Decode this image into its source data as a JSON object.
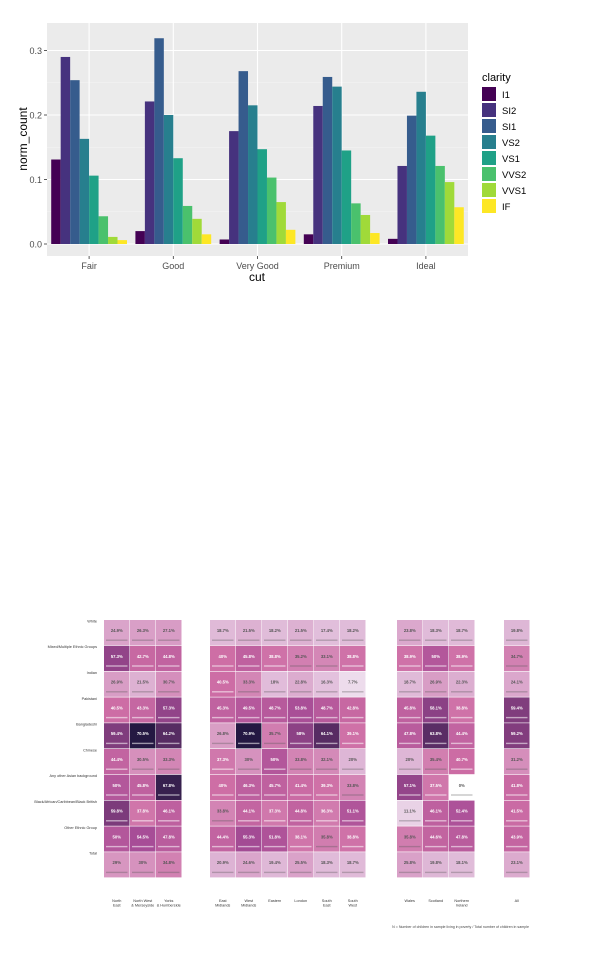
{
  "chart_data": [
    {
      "type": "bar",
      "xlabel": "cut",
      "ylabel": "norm_count",
      "categories": [
        "Fair",
        "Good",
        "Very Good",
        "Premium",
        "Ideal"
      ],
      "ylim": [
        0,
        0.33
      ],
      "yticks": [
        "0.0",
        "0.1",
        "0.2",
        "0.3"
      ],
      "ytick_values": [
        0,
        0.1,
        0.2,
        0.3
      ],
      "grid": true,
      "legend_title": "clarity",
      "legend_position": "right",
      "series": [
        {
          "name": "I1",
          "color": "#440154",
          "values": [
            0.131,
            0.02,
            0.007,
            0.015,
            0.008
          ]
        },
        {
          "name": "SI2",
          "color": "#46327e",
          "values": [
            0.29,
            0.221,
            0.175,
            0.214,
            0.121
          ]
        },
        {
          "name": "SI1",
          "color": "#365c8d",
          "values": [
            0.254,
            0.319,
            0.268,
            0.259,
            0.199
          ]
        },
        {
          "name": "VS2",
          "color": "#277f8e",
          "values": [
            0.163,
            0.2,
            0.215,
            0.244,
            0.236
          ]
        },
        {
          "name": "VS1",
          "color": "#1fa187",
          "values": [
            0.106,
            0.133,
            0.147,
            0.145,
            0.168
          ]
        },
        {
          "name": "VVS2",
          "color": "#4ac16d",
          "values": [
            0.043,
            0.059,
            0.103,
            0.063,
            0.121
          ]
        },
        {
          "name": "VVS1",
          "color": "#a0da39",
          "values": [
            0.011,
            0.039,
            0.065,
            0.045,
            0.096
          ]
        },
        {
          "name": "IF",
          "color": "#fde725",
          "values": [
            0.006,
            0.015,
            0.022,
            0.017,
            0.057
          ]
        }
      ]
    },
    {
      "type": "heatmap",
      "rows": [
        "White",
        "Mixed/Multiple Ethnic Groups",
        "Indian",
        "Pakistani",
        "Bangladeshi",
        "Chinese",
        "Any other Asian background",
        "Black/African/Caribbean/Black British",
        "Other Ethnic Group",
        "Total"
      ],
      "column_groups": [
        {
          "columns": [
            "North East",
            "North West & Merseyside",
            "Yorks & Humberside"
          ]
        },
        {
          "columns": [
            "East Midlands",
            "West Midlands",
            "Eastern",
            "London",
            "South East",
            "South West"
          ]
        },
        {
          "columns": [
            "Wales",
            "Scotland",
            "Northern Ireland"
          ]
        },
        {
          "columns": [
            "All"
          ]
        }
      ],
      "values": [
        [
          24.9,
          26.3,
          27.1,
          18.7,
          21.5,
          18.2,
          21.5,
          17.4,
          18.2,
          23.8,
          18.3,
          18.7,
          19.8
        ],
        [
          57.3,
          42.7,
          44.8,
          40,
          45.8,
          38.8,
          35.2,
          33.1,
          38.8,
          38.9,
          50,
          38.9,
          34.7
        ],
        [
          26.9,
          21.5,
          30.7,
          40.5,
          33.3,
          18,
          22.8,
          16.3,
          7.7,
          18.7,
          26.9,
          22.3,
          24.1
        ],
        [
          40.5,
          43.3,
          57.3,
          45.3,
          49.5,
          48.7,
          53.8,
          48.7,
          42.8,
          45.8,
          58.1,
          38.8,
          59.4
        ],
        [
          59.4,
          70.5,
          64.2,
          26.8,
          70.9,
          35.7,
          58,
          64.1,
          39.1,
          47.8,
          63.8,
          44.4,
          59.2
        ],
        [
          44.4,
          30.5,
          33.3,
          37.3,
          30,
          50,
          33.8,
          32.1,
          20,
          20,
          35.4,
          40.7,
          31.2
        ],
        [
          50,
          45.8,
          67.8,
          40,
          46.3,
          45.7,
          41.4,
          39.3,
          33.8,
          57.1,
          37.5,
          0,
          41.8
        ],
        [
          59.8,
          37.8,
          46.1,
          33.8,
          44.1,
          37.3,
          44.8,
          36.3,
          51.1,
          11.1,
          46.1,
          52.4,
          41.5
        ],
        [
          50,
          54.5,
          47.8,
          44.4,
          55.3,
          51.8,
          38.1,
          35.8,
          38.8,
          35.8,
          44.6,
          47.8,
          43.9
        ],
        [
          29,
          30,
          34.8,
          20.9,
          24.6,
          19.4,
          25.5,
          18.3,
          18.7,
          25.8,
          19.8,
          18.1,
          23.1
        ]
      ],
      "footnote": "N = Number of children in sample living in poverty / Total number of children in sample"
    }
  ]
}
